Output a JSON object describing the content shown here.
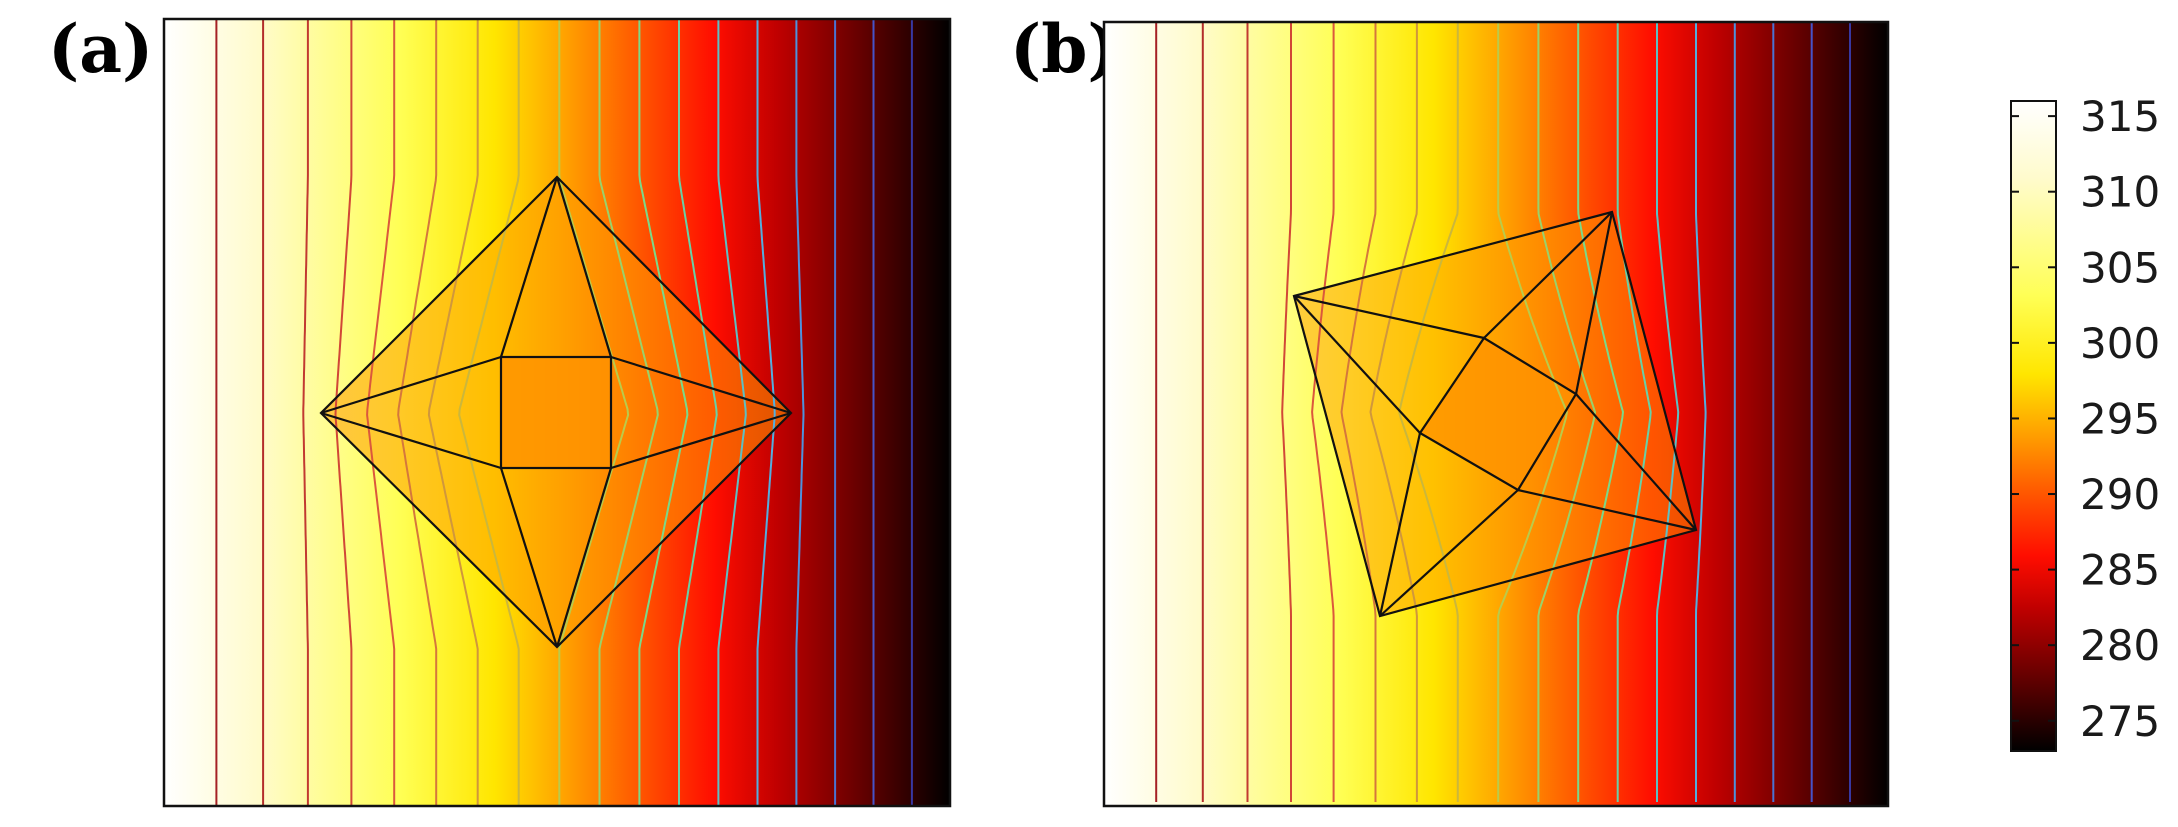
{
  "figure": {
    "panels": [
      {
        "id": "a",
        "label": "(a)"
      },
      {
        "id": "b",
        "label": "(b)"
      }
    ]
  },
  "colorbar": {
    "colormap": "hot",
    "min": 273,
    "max": 316,
    "ticks": [
      "315",
      "310",
      "305",
      "300",
      "295",
      "290",
      "285",
      "280",
      "275"
    ],
    "tick_values": [
      315,
      310,
      305,
      300,
      295,
      290,
      285,
      280,
      275
    ]
  },
  "field": {
    "left_value": 315,
    "right_value": 273,
    "inclusion_value": 295,
    "isotherm_count": 18
  }
}
